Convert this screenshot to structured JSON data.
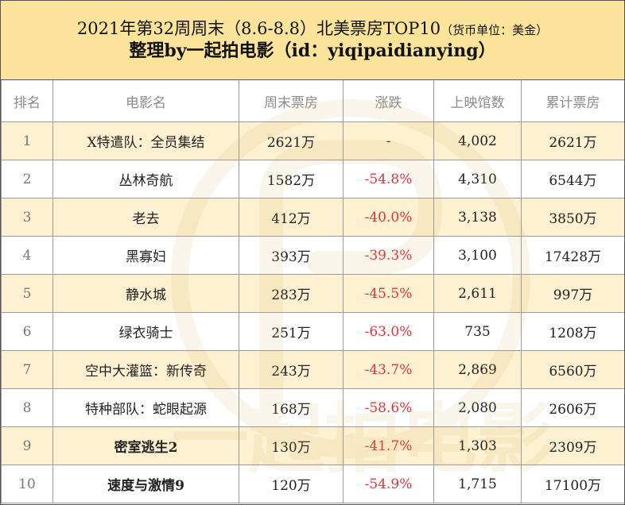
{
  "header": {
    "title": "2021年第32周周末（8.6-8.8）北美票房TOP10",
    "unit_note": "（货币单位：美金）",
    "subtitle": "整理by一起拍电影（id：yiqipaidianying）"
  },
  "table": {
    "columns": [
      "排名",
      "电影名",
      "周末票房",
      "涨跌",
      "上映馆数",
      "累计票房"
    ],
    "rows": [
      {
        "rank": "1",
        "title": "X特遣队：全员集结",
        "weekend": "2621万",
        "change": "-",
        "theaters": "4,002",
        "total": "2621万"
      },
      {
        "rank": "2",
        "title": "丛林奇航",
        "weekend": "1582万",
        "change": "-54.8%",
        "theaters": "4,310",
        "total": "6544万"
      },
      {
        "rank": "3",
        "title": "老去",
        "weekend": "412万",
        "change": "-40.0%",
        "theaters": "3,138",
        "total": "3850万"
      },
      {
        "rank": "4",
        "title": "黑寡妇",
        "weekend": "393万",
        "change": "-39.3%",
        "theaters": "3,100",
        "total": "17428万"
      },
      {
        "rank": "5",
        "title": "静水城",
        "weekend": "283万",
        "change": "-45.5%",
        "theaters": "2,611",
        "total": "997万"
      },
      {
        "rank": "6",
        "title": "绿衣骑士",
        "weekend": "251万",
        "change": "-63.0%",
        "theaters": "735",
        "total": "1208万"
      },
      {
        "rank": "7",
        "title": "空中大灌篮：新传奇",
        "weekend": "243万",
        "change": "-43.7%",
        "theaters": "2,869",
        "total": "6560万"
      },
      {
        "rank": "8",
        "title": "特种部队：蛇眼起源",
        "weekend": "168万",
        "change": "-58.6%",
        "theaters": "2,080",
        "total": "2606万"
      },
      {
        "rank": "9",
        "title": "密室逃生2",
        "weekend": "130万",
        "change": "-41.7%",
        "theaters": "1,303",
        "total": "2309万"
      },
      {
        "rank": "10",
        "title": "速度与激情9",
        "weekend": "120万",
        "change": "-54.9%",
        "theaters": "1,715",
        "total": "17100万"
      }
    ]
  },
  "watermark": {
    "text": "一起拍电影"
  },
  "colors": {
    "header_bg": "#fbe49a",
    "alt_row_bg": "#fdf1d1",
    "negative": "#e8323a"
  }
}
